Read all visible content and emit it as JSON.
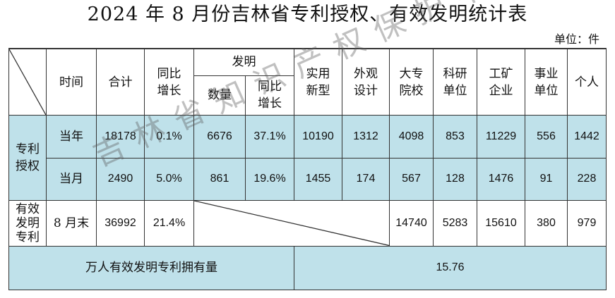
{
  "title": "2024 年 8 月份吉林省专利授权、有效发明统计表",
  "unit": "单位：件",
  "header": {
    "time": "时间",
    "total": "合计",
    "yoy_growth": "同比\n增长",
    "invention": "发明",
    "invention_qty": "数量",
    "invention_yoy": "同比\n增长",
    "utility": "实用\n新型",
    "design": "外观\n设计",
    "university": "大专\n院校",
    "research": "科研\n单位",
    "industry": "工矿\n企业",
    "institution": "事业\n单位",
    "individual": "个人"
  },
  "rows": {
    "grant_label": "专利\n授权",
    "year": {
      "time": "当年",
      "total": "18178",
      "yoy": "0.1%",
      "inv_qty": "6676",
      "inv_yoy": "37.1%",
      "utility": "10190",
      "design": "1312",
      "university": "4098",
      "research": "853",
      "industry": "11229",
      "institution": "556",
      "individual": "1442"
    },
    "month": {
      "time": "当月",
      "total": "2490",
      "yoy": "5.0%",
      "inv_qty": "861",
      "inv_yoy": "19.6%",
      "utility": "1455",
      "design": "174",
      "university": "567",
      "research": "128",
      "industry": "1476",
      "institution": "91",
      "individual": "228"
    },
    "valid": {
      "label": "有效\n发明\n专利",
      "time": "8 月末",
      "total": "36992",
      "yoy": "21.4%",
      "university": "14740",
      "research": "5283",
      "industry": "15610",
      "institution": "380",
      "individual": "979"
    },
    "per10k": {
      "label": "万人有效发明专利拥有量",
      "value": "15.76"
    }
  },
  "watermark": "吉林省知识产权保护中心",
  "colors": {
    "highlight": "#bfe1ea",
    "border": "#333333"
  }
}
